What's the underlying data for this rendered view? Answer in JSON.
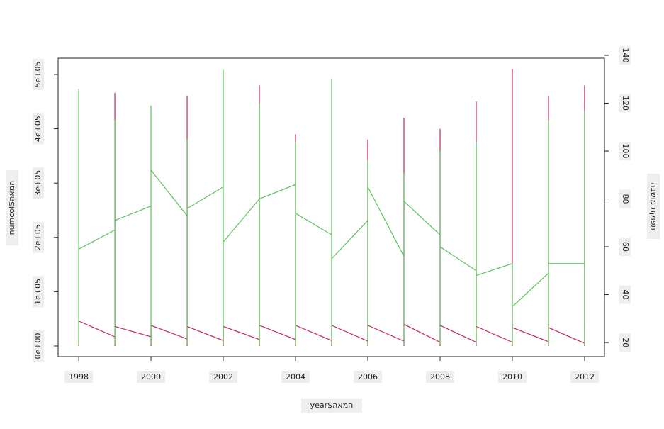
{
  "chart_data": {
    "type": "line",
    "x_label": "year$המאה",
    "y_label": "numcol$המאה",
    "y2_label": "תפוקת מושבה",
    "xlim": [
      1997.43,
      2012.55
    ],
    "xticks": [
      1998,
      2000,
      2002,
      2004,
      2006,
      2008,
      2010,
      2012
    ],
    "ylim": [
      -19600,
      530000
    ],
    "yticks": [
      {
        "value": 0,
        "label": "0e+00"
      },
      {
        "value": 100000,
        "label": "1e+05"
      },
      {
        "value": 200000,
        "label": "2e+05"
      },
      {
        "value": 300000,
        "label": "3e+05"
      },
      {
        "value": 400000,
        "label": "4e+05"
      },
      {
        "value": 500000,
        "label": "5e+05"
      }
    ],
    "y2lim": [
      14.1,
      138.8
    ],
    "y2ticks": [
      20,
      40,
      60,
      80,
      100,
      120,
      140
    ],
    "series": [
      {
        "color": "#c0285a",
        "x": [
          1998,
          1998,
          1999,
          1999,
          1999,
          1999,
          2000,
          2000,
          2000,
          2000,
          2001,
          2001,
          2001,
          2001,
          2002,
          2002,
          2002,
          2002,
          2003,
          2003,
          2003,
          2003,
          2004,
          2004,
          2004,
          2004,
          2005,
          2005,
          2005,
          2005,
          2006,
          2006,
          2006,
          2006,
          2007,
          2007,
          2007,
          2007,
          2008,
          2008,
          2008,
          2008,
          2009,
          2009,
          2009,
          2009,
          2010,
          2010,
          2010,
          2010,
          2011,
          2011,
          2011,
          2011,
          2012,
          2012,
          2012
        ],
        "values": [
          0,
          46000,
          17000,
          0,
          466000,
          36000,
          17000,
          0,
          38000,
          38000,
          13000,
          0,
          460000,
          36000,
          10000,
          0,
          36000,
          36000,
          12000,
          0,
          480000,
          38000,
          12000,
          0,
          390000,
          38000,
          10000,
          0,
          38000,
          38000,
          9000,
          0,
          380000,
          38000,
          9000,
          0,
          420000,
          40000,
          7000,
          0,
          400000,
          38000,
          7000,
          0,
          450000,
          36000,
          7000,
          0,
          510000,
          34000,
          8000,
          0,
          460000,
          34000,
          5000,
          0,
          480000
        ]
      },
      {
        "color": "#5cc15c",
        "axis": "y2",
        "x": [
          1998,
          1998,
          1998,
          1999,
          1999,
          1999,
          1999,
          2000,
          2000,
          2000,
          2000,
          2001,
          2001,
          2001,
          2001,
          2002,
          2002,
          2002,
          2002,
          2003,
          2003,
          2003,
          2003,
          2004,
          2004,
          2004,
          2004,
          2005,
          2005,
          2005,
          2005,
          2006,
          2006,
          2006,
          2006,
          2007,
          2007,
          2007,
          2007,
          2008,
          2008,
          2008,
          2008,
          2009,
          2009,
          2009,
          2009,
          2010,
          2010,
          2010,
          2010,
          2011,
          2011,
          2011,
          2011,
          2012,
          2012,
          2012
        ],
        "values": [
          19,
          126,
          59,
          67,
          19,
          113,
          71,
          77,
          19,
          119,
          92,
          73,
          19,
          105,
          76,
          85,
          19,
          134,
          62,
          80,
          19,
          120,
          80,
          86,
          19,
          104,
          74,
          65,
          19,
          130,
          55,
          71,
          19,
          96,
          85,
          56,
          19,
          91,
          79,
          65,
          19,
          100,
          60,
          50,
          19,
          104,
          48,
          53,
          19,
          53,
          35,
          49,
          19,
          113,
          53,
          53,
          19,
          117
        ]
      }
    ]
  }
}
